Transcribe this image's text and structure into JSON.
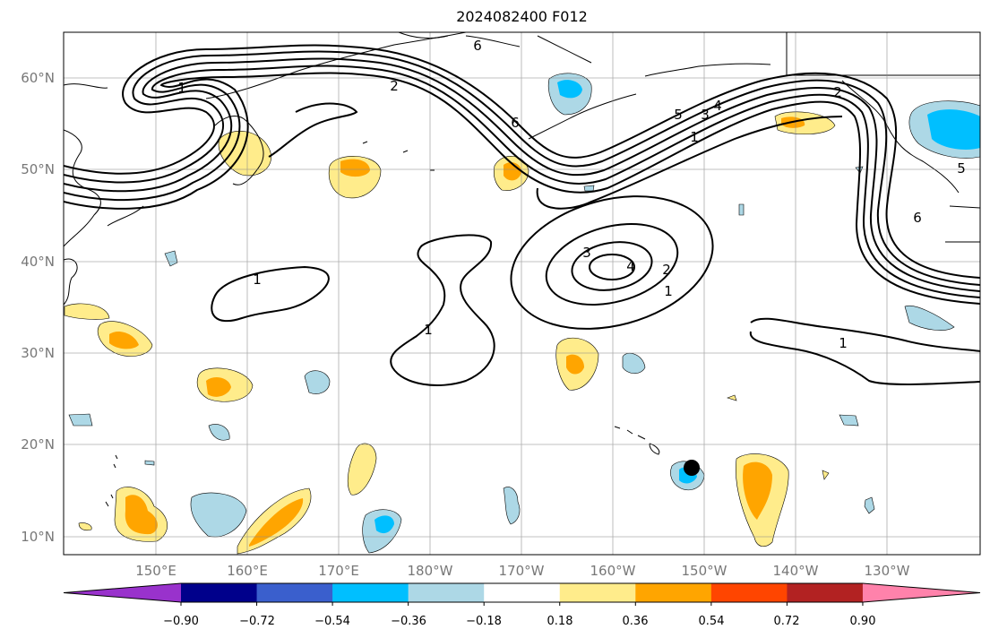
{
  "title": "2024082400 F012",
  "lat_labels": [
    "60°N",
    "50°N",
    "40°N",
    "30°N",
    "20°N",
    "10°N"
  ],
  "lon_labels": [
    "150°E",
    "160°E",
    "170°E",
    "180°W",
    "170°W",
    "160°W",
    "150°W",
    "140°W",
    "130°W"
  ],
  "colorbar": {
    "ticks": [
      "−0.90",
      "−0.72",
      "−0.54",
      "−0.36",
      "−0.18",
      "0.18",
      "0.36",
      "0.54",
      "0.72",
      "0.90"
    ],
    "colors": [
      "#9932cc",
      "#00008b",
      "#3a5fcd",
      "#00bfff",
      "#add8e6",
      "#ffffff",
      "#ffec8b",
      "#ffa500",
      "#ff4500",
      "#b22222",
      "#ff82ab"
    ]
  },
  "contour_labels": [
    "6",
    "1",
    "2",
    "6",
    "5",
    "3",
    "4",
    "1",
    "4",
    "3",
    "2",
    "1",
    "1",
    "1",
    "1",
    "2",
    "6",
    "5"
  ],
  "marker": "storm-position-dot"
}
